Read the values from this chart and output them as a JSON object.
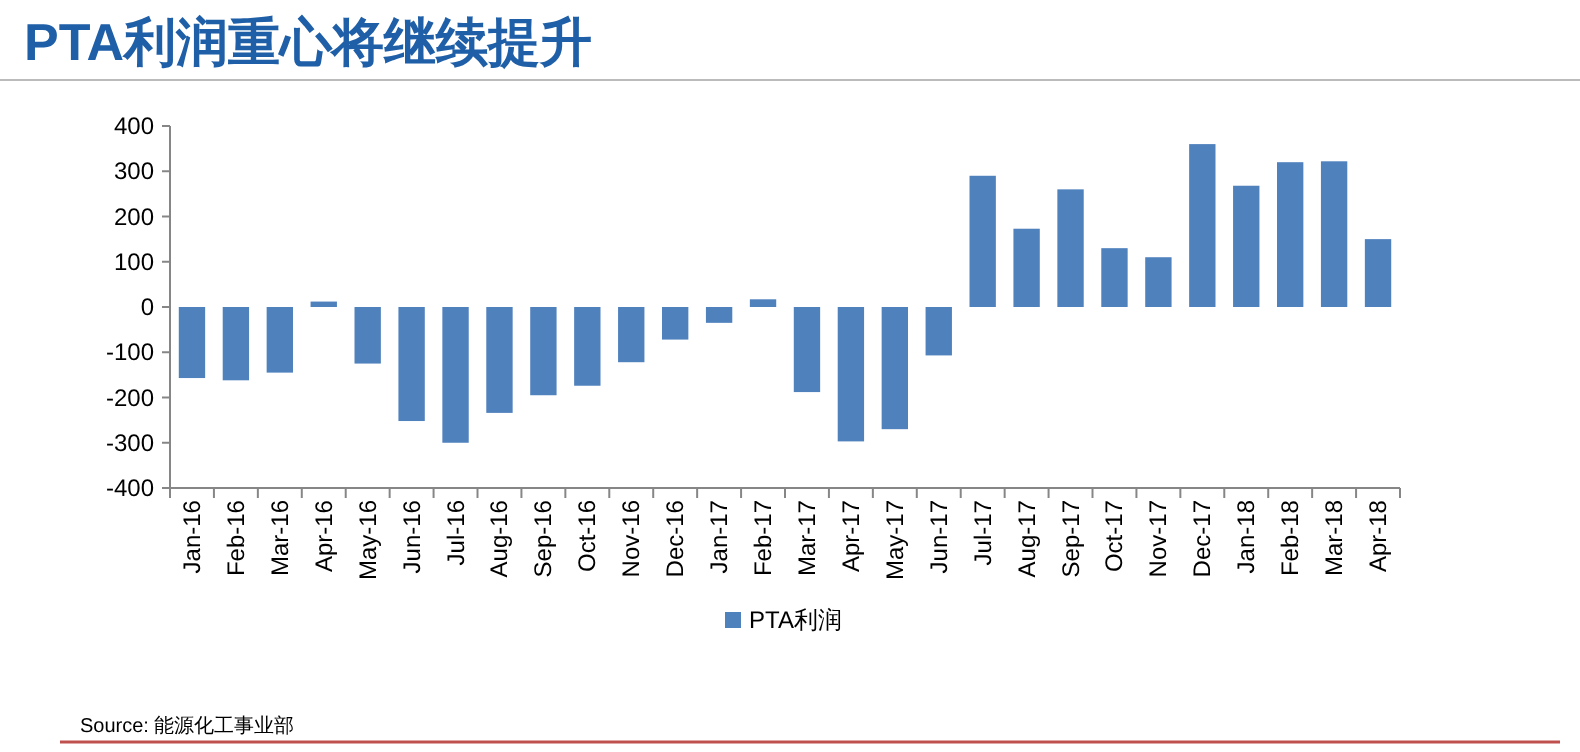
{
  "chart_data": {
    "type": "bar",
    "title": "PTA利润重心将继续提升",
    "categories": [
      "Jan-16",
      "Feb-16",
      "Mar-16",
      "Apr-16",
      "May-16",
      "Jun-16",
      "Jul-16",
      "Aug-16",
      "Sep-16",
      "Oct-16",
      "Nov-16",
      "Dec-16",
      "Jan-17",
      "Feb-17",
      "Mar-17",
      "Apr-17",
      "May-17",
      "Jun-17",
      "Jul-17",
      "Aug-17",
      "Sep-17",
      "Oct-17",
      "Nov-17",
      "Dec-17",
      "Jan-18",
      "Feb-18",
      "Mar-18",
      "Apr-18"
    ],
    "series": [
      {
        "name": "PTA利润",
        "color": "#4f81bd",
        "values": [
          -157,
          -162,
          -145,
          12,
          -125,
          -252,
          -300,
          -234,
          -195,
          -174,
          -122,
          -72,
          -35,
          17,
          -188,
          -297,
          -270,
          -107,
          290,
          173,
          260,
          130,
          110,
          360,
          268,
          320,
          322,
          150
        ]
      }
    ],
    "ylim": [
      -400,
      400
    ],
    "yticks": [
      -400,
      -300,
      -200,
      -100,
      0,
      100,
      200,
      300,
      400
    ],
    "grid": false,
    "legend": "bottom",
    "annotations": [
      "Source: 能源化工事业部"
    ]
  }
}
